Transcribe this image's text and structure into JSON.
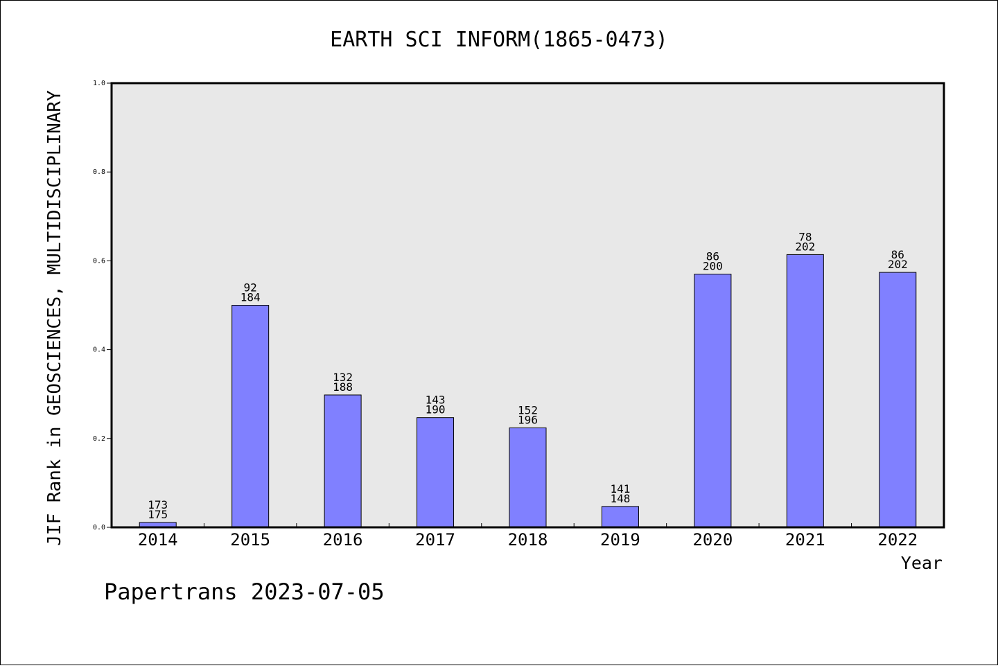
{
  "chart_data": {
    "type": "bar",
    "title": "EARTH SCI INFORM(1865-0473)",
    "xlabel": "Year",
    "ylabel": "JIF Rank in GEOSCIENCES, MULTIDISCIPLINARY",
    "ylim": [
      0,
      1.0
    ],
    "yticks": [
      "0.0",
      "0.2",
      "0.4",
      "0.6",
      "0.8",
      "1.0"
    ],
    "categories": [
      "2014",
      "2015",
      "2016",
      "2017",
      "2018",
      "2019",
      "2020",
      "2021",
      "2022"
    ],
    "values": [
      0.011,
      0.5,
      0.298,
      0.247,
      0.224,
      0.047,
      0.57,
      0.614,
      0.574
    ],
    "rank": [
      "173",
      "92",
      "132",
      "143",
      "152",
      "141",
      "86",
      "78",
      "86"
    ],
    "total": [
      "175",
      "184",
      "188",
      "190",
      "196",
      "148",
      "200",
      "202",
      "202"
    ],
    "bar_color": "#8080ff",
    "plot_background": "#e8e8e8",
    "grid": false,
    "legend": "none"
  },
  "footer": "Papertrans 2023-07-05"
}
